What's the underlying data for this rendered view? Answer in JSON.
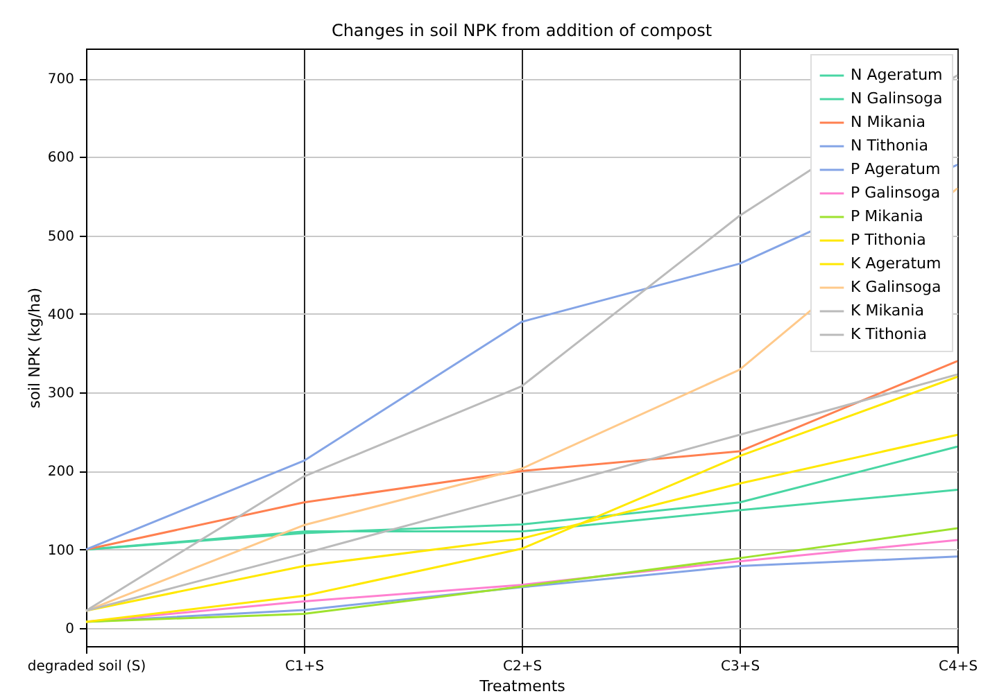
{
  "chart_data": {
    "type": "line",
    "title": "Changes in soil NPK from addition of compost",
    "xlabel": "Treatments",
    "ylabel": "soil NPK (kg/ha)",
    "categories": [
      "degraded soil (S)",
      "C1+S",
      "C2+S",
      "C3+S",
      "C4+S"
    ],
    "series": [
      {
        "name": "N Ageratum",
        "color": "#48d6a3",
        "values": [
          100,
          121,
          132,
          160,
          231
        ]
      },
      {
        "name": "N Galinsoga",
        "color": "#48d6a3",
        "values": [
          100,
          123,
          123,
          150,
          176
        ]
      },
      {
        "name": "N Mikania",
        "color": "#ff8050",
        "values": [
          100,
          160,
          200,
          225,
          340
        ]
      },
      {
        "name": "N Tithonia",
        "color": "#84a4e6",
        "values": [
          100,
          213,
          390,
          464,
          590
        ]
      },
      {
        "name": "P Ageratum",
        "color": "#84a4e6",
        "values": [
          8,
          23,
          52,
          79,
          91
        ]
      },
      {
        "name": "P Galinsoga",
        "color": "#ff80d0",
        "values": [
          8,
          34,
          55,
          85,
          112
        ]
      },
      {
        "name": "P Mikania",
        "color": "#9ee22e",
        "values": [
          8,
          18,
          53,
          89,
          127
        ]
      },
      {
        "name": "P Tithonia",
        "color": "#ffe800",
        "values": [
          8,
          41,
          101,
          219,
          320
        ]
      },
      {
        "name": "K Ageratum",
        "color": "#ffe800",
        "values": [
          22,
          79,
          114,
          184,
          246
        ]
      },
      {
        "name": "K Galinsoga",
        "color": "#ffc98a",
        "values": [
          22,
          131,
          203,
          329,
          560
        ]
      },
      {
        "name": "K Mikania",
        "color": "#bbbbbb",
        "values": [
          22,
          193,
          308,
          525,
          704
        ]
      },
      {
        "name": "K Tithonia",
        "color": "#bbbbbb",
        "values": [
          22,
          95,
          170,
          246,
          323
        ]
      }
    ],
    "ylim": [
      -23,
      738
    ],
    "yticks": [
      0,
      100,
      200,
      300,
      400,
      500,
      600,
      700
    ],
    "grid": true,
    "legend": "top right",
    "line_style": "solid"
  }
}
